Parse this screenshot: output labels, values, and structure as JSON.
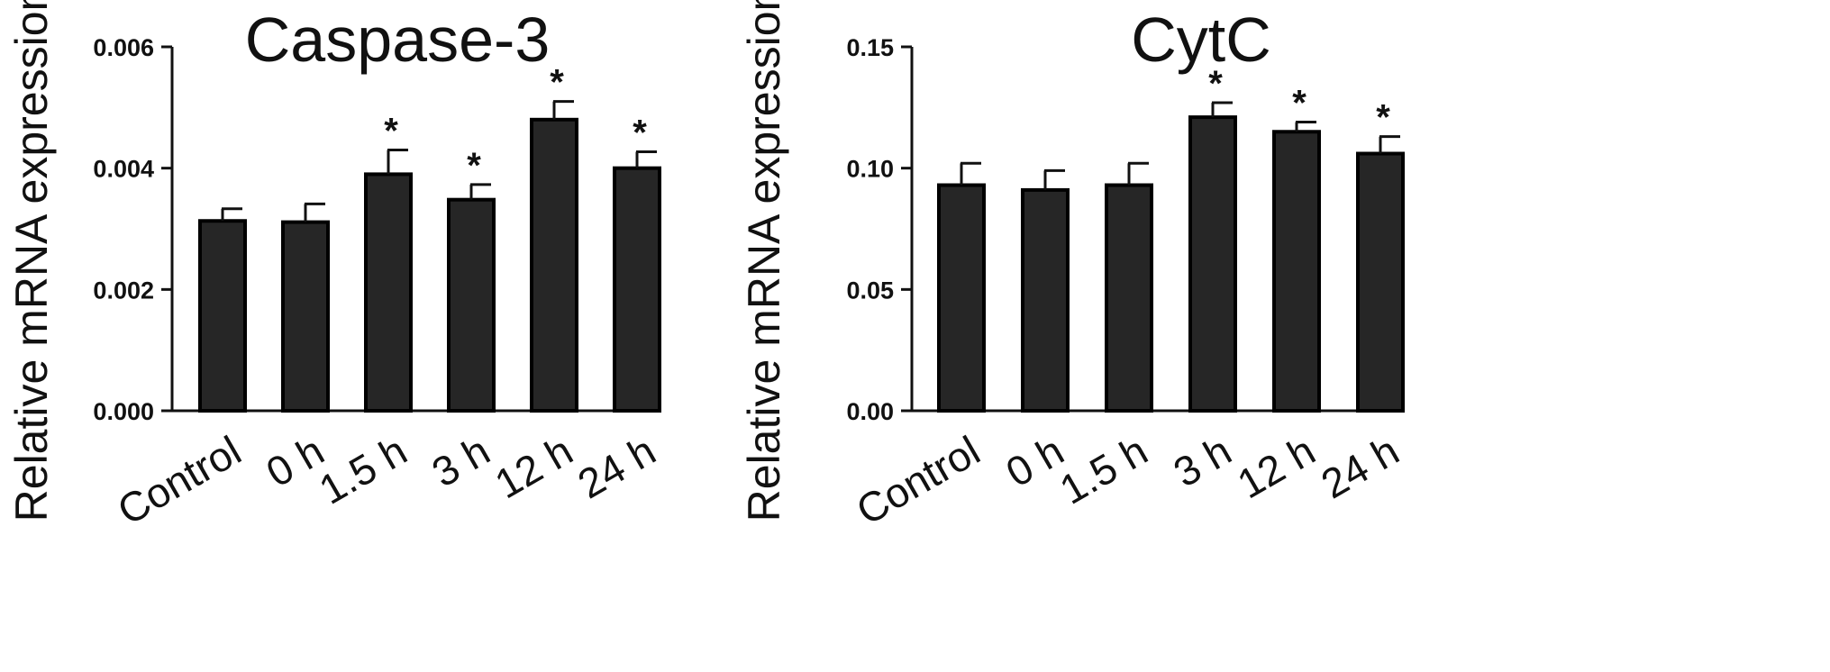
{
  "chart_data": [
    {
      "type": "bar",
      "title": "Caspase-3",
      "xlabel": "",
      "ylabel": "Relative mRNA expression",
      "categories": [
        "Control",
        "0 h",
        "1.5 h",
        "3 h",
        "12 h",
        "24 h"
      ],
      "values": [
        0.00313,
        0.00311,
        0.0039,
        0.00348,
        0.0048,
        0.004
      ],
      "errors": [
        0.0002,
        0.0003,
        0.0004,
        0.00025,
        0.0003,
        0.00027
      ],
      "significance": [
        "",
        "",
        "*",
        "*",
        "*",
        "*"
      ],
      "ylim": [
        0,
        0.006
      ],
      "yticks": [
        "0.000",
        "0.002",
        "0.004",
        "0.006"
      ],
      "grid": false,
      "bar_color": "#262626"
    },
    {
      "type": "bar",
      "title": "CytC",
      "xlabel": "",
      "ylabel": "Relative mRNA expression",
      "categories": [
        "Control",
        "0 h",
        "1.5 h",
        "3 h",
        "12 h",
        "24 h"
      ],
      "values": [
        0.093,
        0.091,
        0.093,
        0.121,
        0.115,
        0.106
      ],
      "errors": [
        0.009,
        0.008,
        0.009,
        0.006,
        0.004,
        0.007
      ],
      "significance": [
        "",
        "",
        "",
        "*",
        "*",
        "*"
      ],
      "ylim": [
        0,
        0.15
      ],
      "yticks": [
        "0.00",
        "0.05",
        "0.10",
        "0.15"
      ],
      "grid": false,
      "bar_color": "#262626"
    }
  ]
}
